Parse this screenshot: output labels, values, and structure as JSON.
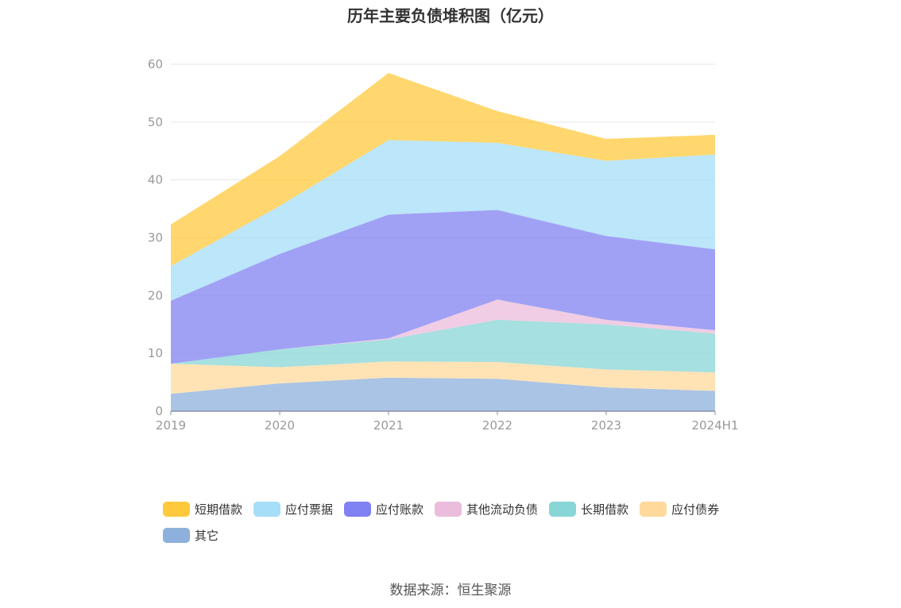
{
  "chart_data": {
    "type": "area",
    "title": "历年主要负债堆积图（亿元）",
    "source": "数据来源：恒生聚源",
    "categories": [
      "2019",
      "2020",
      "2021",
      "2022",
      "2023",
      "2024H1"
    ],
    "ylim": [
      0,
      60
    ],
    "yticks": [
      0,
      10,
      20,
      30,
      40,
      50,
      60
    ],
    "grid": true,
    "stacked": true,
    "legend_position": "bottom",
    "series": [
      {
        "name": "其它",
        "color": "#8eb0dc",
        "values": [
          3.0,
          4.8,
          5.8,
          5.6,
          4.1,
          3.5
        ]
      },
      {
        "name": "应付债券",
        "color": "#ffd99c",
        "values": [
          5.2,
          2.8,
          2.8,
          2.9,
          3.1,
          3.2
        ]
      },
      {
        "name": "长期借款",
        "color": "#88d6d6",
        "values": [
          0.0,
          3.1,
          3.8,
          7.3,
          7.8,
          6.7
        ]
      },
      {
        "name": "其他流动负债",
        "color": "#ebbcdb",
        "values": [
          0.0,
          0.0,
          0.2,
          3.5,
          0.8,
          0.6
        ]
      },
      {
        "name": "应付账款",
        "color": "#8081f2",
        "values": [
          10.9,
          16.5,
          21.4,
          15.5,
          14.5,
          14.0
        ]
      },
      {
        "name": "应付票据",
        "color": "#a6def7",
        "values": [
          6.0,
          8.3,
          12.9,
          11.6,
          13.0,
          16.4
        ]
      },
      {
        "name": "短期借款",
        "color": "#ffc93e",
        "values": [
          7.2,
          8.6,
          11.6,
          5.5,
          3.8,
          3.4
        ]
      }
    ],
    "legend_order": [
      "短期借款",
      "应付票据",
      "应付账款",
      "其他流动负债",
      "长期借款",
      "应付债券",
      "其它"
    ]
  }
}
